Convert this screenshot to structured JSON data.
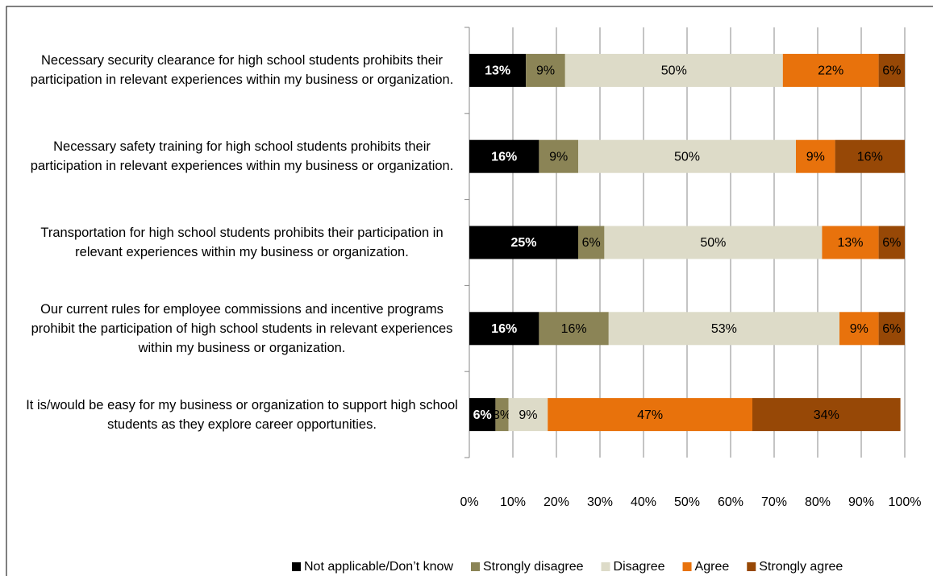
{
  "chart_data": {
    "type": "stacked_barh",
    "categories": [
      "Necessary security clearance for high school students prohibits their participation in relevant experiences within my business or organization.",
      "Necessary safety training for high school students prohibits their participation in relevant experiences within my business or organization.",
      "Transportation for high school students prohibits their participation in relevant experiences within my business or organization.",
      "Our current rules for employee commissions and incentive programs prohibit the participation of high school students in relevant experiences within my business or organization.",
      "It is/would be easy for my business or organization to support high school students as they explore career opportunities."
    ],
    "series": [
      {
        "name": "Not applicable/Don’t know",
        "color": "#000000",
        "values": [
          13,
          16,
          25,
          16,
          6
        ],
        "value_labels": [
          "13%",
          "16%",
          "25%",
          "16%",
          "6%"
        ]
      },
      {
        "name": "Strongly disagree",
        "color": "#8b8456",
        "values": [
          9,
          9,
          6,
          16,
          3
        ],
        "value_labels": [
          "9%",
          "9%",
          "6%",
          "16%",
          "3%"
        ]
      },
      {
        "name": "Disagree",
        "color": "#dddbc8",
        "values": [
          50,
          50,
          50,
          53,
          9
        ],
        "value_labels": [
          "50%",
          "50%",
          "50%",
          "53%",
          "9%"
        ]
      },
      {
        "name": "Agree",
        "color": "#e8720c",
        "values": [
          22,
          9,
          13,
          9,
          47
        ],
        "value_labels": [
          "22%",
          "9%",
          "13%",
          "9%",
          "47%"
        ]
      },
      {
        "name": "Strongly agree",
        "color": "#974806",
        "values": [
          6,
          16,
          6,
          6,
          34
        ],
        "value_labels": [
          "6%",
          "16%",
          "6%",
          "6%",
          "34%"
        ]
      }
    ],
    "xlim": [
      0,
      100
    ],
    "xticks": [
      {
        "value": 0,
        "label": "0%"
      },
      {
        "value": 10,
        "label": "10%"
      },
      {
        "value": 20,
        "label": "20%"
      },
      {
        "value": 30,
        "label": "30%"
      },
      {
        "value": 40,
        "label": "40%"
      },
      {
        "value": 50,
        "label": "50%"
      },
      {
        "value": 60,
        "label": "60%"
      },
      {
        "value": 70,
        "label": "70%"
      },
      {
        "value": 80,
        "label": "80%"
      },
      {
        "value": 90,
        "label": "90%"
      },
      {
        "value": 100,
        "label": "100%"
      }
    ],
    "grid": true,
    "legend": "bottom"
  }
}
